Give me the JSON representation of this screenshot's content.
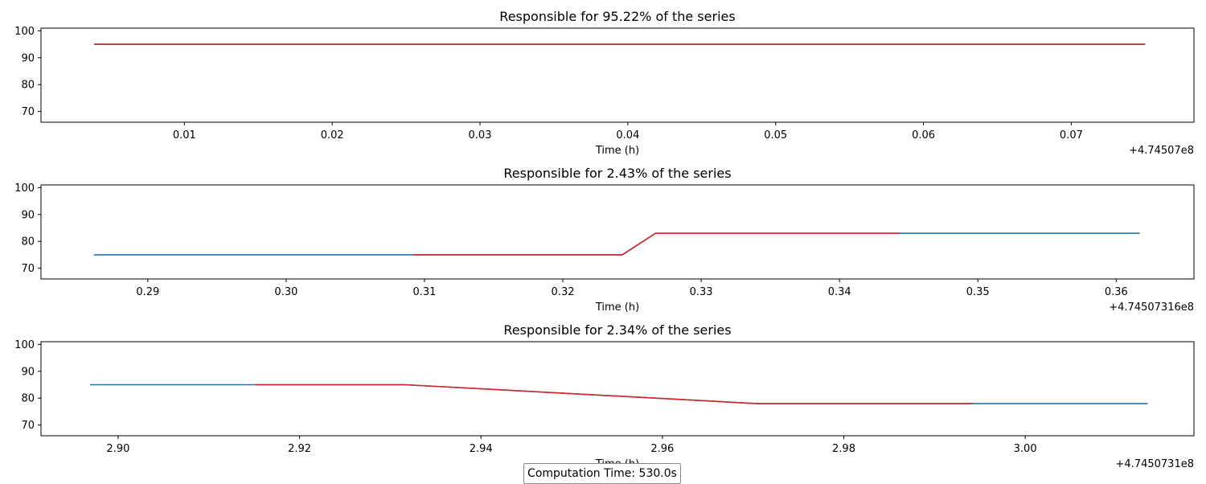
{
  "chart_data": [
    {
      "type": "line",
      "title": "Responsible for 95.22% of the series",
      "xlabel": "Time (h)",
      "ylabel": "",
      "x_offset_label": "+4.74507e8",
      "xlim": [
        0.0003,
        0.0783
      ],
      "ylim": [
        66,
        101
      ],
      "x_ticks": [
        0.01,
        0.02,
        0.03,
        0.04,
        0.05,
        0.06,
        0.07
      ],
      "x_tick_labels": [
        "0.01",
        "0.02",
        "0.03",
        "0.04",
        "0.05",
        "0.06",
        "0.07"
      ],
      "y_ticks": [
        70,
        80,
        90,
        100
      ],
      "y_tick_labels": [
        "70",
        "80",
        "90",
        "100"
      ],
      "series": [
        {
          "color": "#1f77b4",
          "points": [
            [
              0.0039,
              95
            ],
            [
              0.075,
              95
            ]
          ]
        },
        {
          "color": "#d62728",
          "points": [
            [
              0.0039,
              95
            ],
            [
              0.075,
              95
            ]
          ]
        }
      ],
      "grid": false
    },
    {
      "type": "line",
      "title": "Responsible for 2.43% of the series",
      "xlabel": "Time (h)",
      "ylabel": "",
      "x_offset_label": "+4.74507316e8",
      "xlim": [
        0.28228,
        0.36562
      ],
      "ylim": [
        66,
        101
      ],
      "x_ticks": [
        0.29,
        0.3,
        0.31,
        0.32,
        0.33,
        0.34,
        0.35,
        0.36
      ],
      "x_tick_labels": [
        "0.29",
        "0.30",
        "0.31",
        "0.32",
        "0.33",
        "0.34",
        "0.35",
        "0.36"
      ],
      "y_ticks": [
        70,
        80,
        90,
        100
      ],
      "y_tick_labels": [
        "70",
        "80",
        "90",
        "100"
      ],
      "series": [
        {
          "color": "#1f77b4",
          "points": [
            [
              0.2861,
              75
            ],
            [
              0.3243,
              75
            ],
            [
              0.3267,
              83
            ],
            [
              0.3617,
              83
            ]
          ]
        },
        {
          "color": "#d62728",
          "points": [
            [
              0.3092,
              75
            ],
            [
              0.3243,
              75
            ],
            [
              0.3267,
              83
            ],
            [
              0.3443,
              83
            ]
          ]
        }
      ],
      "grid": false
    },
    {
      "type": "line",
      "title": "Responsible for 2.34% of the series",
      "xlabel": "Time (h)",
      "ylabel": "",
      "x_offset_label": "+4.7450731e8",
      "xlim": [
        2.8915,
        3.0186
      ],
      "ylim": [
        66,
        101
      ],
      "x_ticks": [
        2.9,
        2.92,
        2.94,
        2.96,
        2.98,
        3.0
      ],
      "x_tick_labels": [
        "2.90",
        "2.92",
        "2.94",
        "2.96",
        "2.98",
        "3.00"
      ],
      "y_ticks": [
        70,
        80,
        90,
        100
      ],
      "y_tick_labels": [
        "70",
        "80",
        "90",
        "100"
      ],
      "series": [
        {
          "color": "#1f77b4",
          "points": [
            [
              2.8969,
              85
            ],
            [
              2.9316,
              85
            ],
            [
              2.9703,
              78
            ],
            [
              3.0135,
              78
            ]
          ]
        },
        {
          "color": "#d62728",
          "points": [
            [
              2.9151,
              85
            ],
            [
              2.9316,
              85
            ],
            [
              2.9703,
              78
            ],
            [
              2.9942,
              78
            ]
          ]
        }
      ],
      "grid": false
    }
  ],
  "footer": {
    "computation_time": "Computation Time: 530.0s"
  }
}
